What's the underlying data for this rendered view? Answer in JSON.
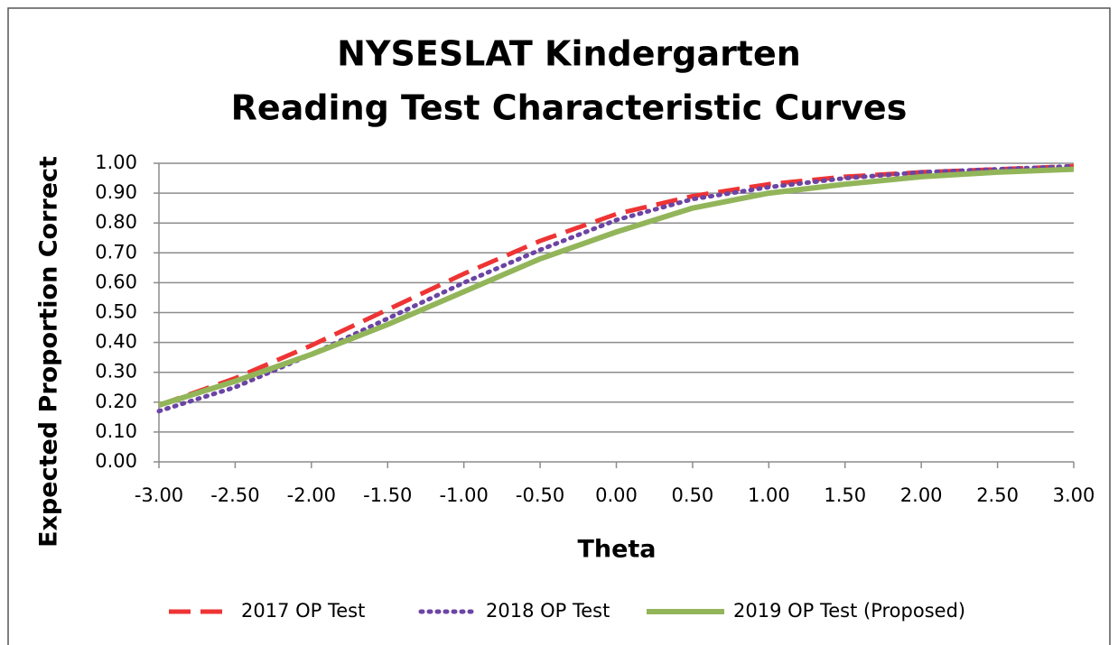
{
  "chart_data": {
    "type": "line",
    "title": [
      "NYSESLAT Kindergarten",
      "Reading Test Characteristic Curves"
    ],
    "x_label": "Theta",
    "y_label": "Expected Proportion Correct",
    "x": [
      -3,
      -2.5,
      -2,
      -1.5,
      -1,
      -0.5,
      0,
      0.5,
      1,
      1.5,
      2,
      2.5,
      3
    ],
    "series": [
      {
        "name": "2017 OP Test",
        "color": "#ee3434",
        "dash": "dashed",
        "values": [
          0.19,
          0.28,
          0.39,
          0.51,
          0.63,
          0.74,
          0.83,
          0.89,
          0.93,
          0.955,
          0.97,
          0.98,
          0.99
        ]
      },
      {
        "name": "2018 OP Test",
        "color": "#6b44a4",
        "dash": "dotted",
        "values": [
          0.17,
          0.25,
          0.36,
          0.48,
          0.6,
          0.71,
          0.81,
          0.88,
          0.92,
          0.95,
          0.97,
          0.98,
          0.99
        ]
      },
      {
        "name": "2019 OP Test (Proposed)",
        "color": "#92b55a",
        "dash": "solid",
        "values": [
          0.19,
          0.27,
          0.36,
          0.46,
          0.57,
          0.68,
          0.77,
          0.85,
          0.9,
          0.93,
          0.955,
          0.97,
          0.98
        ]
      }
    ],
    "xlim": [
      -3,
      3
    ],
    "xticks": [
      {
        "value": -3,
        "label": "-3.00"
      },
      {
        "value": -2.5,
        "label": "-2.50"
      },
      {
        "value": -2,
        "label": "-2.00"
      },
      {
        "value": -1.5,
        "label": "-1.50"
      },
      {
        "value": -1,
        "label": "-1.00"
      },
      {
        "value": -0.5,
        "label": "-0.50"
      },
      {
        "value": 0,
        "label": "0.00"
      },
      {
        "value": 0.5,
        "label": "0.50"
      },
      {
        "value": 1,
        "label": "1.00"
      },
      {
        "value": 1.5,
        "label": "1.50"
      },
      {
        "value": 2,
        "label": "2.00"
      },
      {
        "value": 2.5,
        "label": "2.50"
      },
      {
        "value": 3,
        "label": "3.00"
      }
    ],
    "ylim": [
      0,
      1
    ],
    "yticks": [
      {
        "value": 0,
        "label": "0.00"
      },
      {
        "value": 0.1,
        "label": "0.10"
      },
      {
        "value": 0.2,
        "label": "0.20"
      },
      {
        "value": 0.3,
        "label": "0.30"
      },
      {
        "value": 0.4,
        "label": "0.40"
      },
      {
        "value": 0.5,
        "label": "0.50"
      },
      {
        "value": 0.6,
        "label": "0.60"
      },
      {
        "value": 0.7,
        "label": "0.70"
      },
      {
        "value": 0.8,
        "label": "0.80"
      },
      {
        "value": 0.9,
        "label": "0.90"
      },
      {
        "value": 1,
        "label": "1.00"
      }
    ],
    "grid": true,
    "legend": "bottom"
  }
}
